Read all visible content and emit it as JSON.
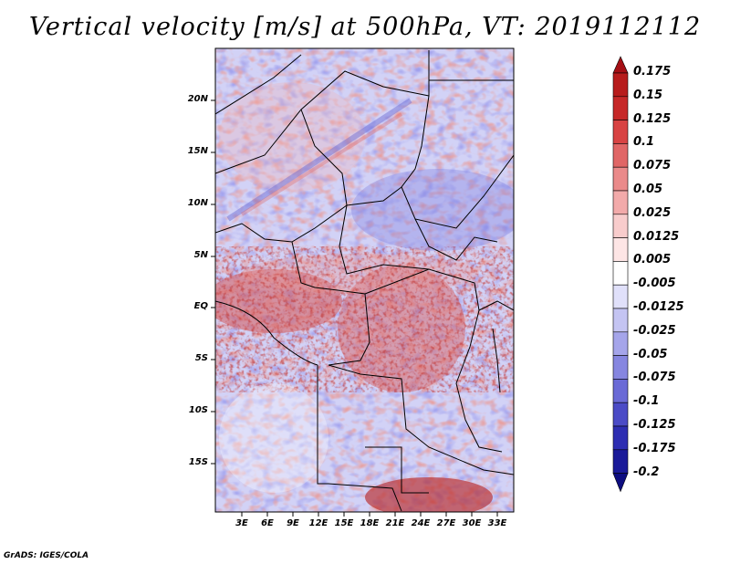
{
  "title": "Vertical velocity [m/s] at 500hPa, VT: 2019112112",
  "footer": "GrADS: IGES/COLA",
  "latitude_labels": [
    "20N",
    "15N",
    "10N",
    "5N",
    "EQ",
    "5S",
    "10S",
    "15S"
  ],
  "longitude_labels": [
    "3E",
    "6E",
    "9E",
    "12E",
    "15E",
    "18E",
    "21E",
    "24E",
    "27E",
    "30E",
    "33E"
  ],
  "colorbar": {
    "labels": [
      "0.175",
      "0.15",
      "0.125",
      "0.1",
      "0.075",
      "0.05",
      "0.025",
      "0.0125",
      "0.005",
      "-0.005",
      "-0.0125",
      "-0.025",
      "-0.05",
      "-0.075",
      "-0.1",
      "-0.125",
      "-0.175",
      "-0.2"
    ],
    "colors": [
      "#a50f15",
      "#b71c1c",
      "#c62828",
      "#d84343",
      "#e06666",
      "#ea8a8a",
      "#f2aaaa",
      "#f8cccc",
      "#fde5e5",
      "#ffffff",
      "#e0e0fa",
      "#c4c4f2",
      "#a5a5ea",
      "#8686e0",
      "#6a6ad6",
      "#4b4bc6",
      "#2e2eb2",
      "#1a1a99",
      "#0d0d80"
    ]
  },
  "map_extent": {
    "lon_range": [
      0,
      34.5
    ],
    "lat_range": [
      -20,
      25
    ],
    "region": "Central Africa"
  }
}
